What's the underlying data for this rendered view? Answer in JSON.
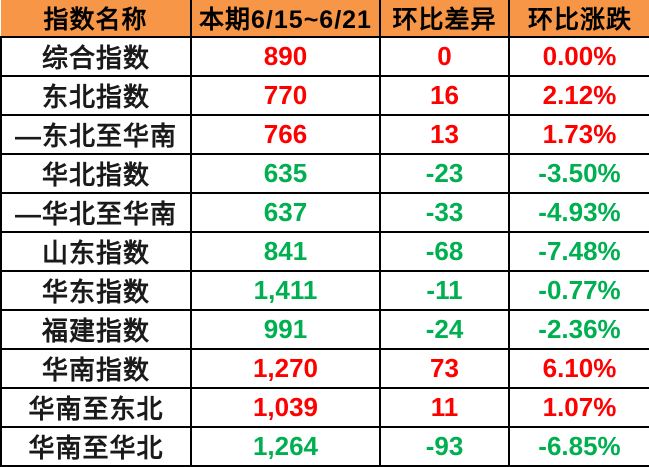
{
  "colors": {
    "header_bg": "#F79646",
    "up_text": "#FF0000",
    "down_text": "#00B050",
    "border": "#000000",
    "header_text": "#000000",
    "name_text": "#1A1A1A",
    "row_bg": "#FFFFFF"
  },
  "table": {
    "headers": {
      "name": "指数名称",
      "current": "本期6/15~6/21",
      "diff": "环比差异",
      "pct": "环比涨跌"
    },
    "rows": [
      {
        "name": "综合指数",
        "current": "890",
        "diff": "0",
        "pct": "0.00%",
        "trend": "up"
      },
      {
        "name": "东北指数",
        "current": "770",
        "diff": "16",
        "pct": "2.12%",
        "trend": "up"
      },
      {
        "name": "—东北至华南",
        "current": "766",
        "diff": "13",
        "pct": "1.73%",
        "trend": "up"
      },
      {
        "name": "华北指数",
        "current": "635",
        "diff": "-23",
        "pct": "-3.50%",
        "trend": "down"
      },
      {
        "name": "—华北至华南",
        "current": "637",
        "diff": "-33",
        "pct": "-4.93%",
        "trend": "down"
      },
      {
        "name": "山东指数",
        "current": "841",
        "diff": "-68",
        "pct": "-7.48%",
        "trend": "down"
      },
      {
        "name": "华东指数",
        "current": "1,411",
        "diff": "-11",
        "pct": "-0.77%",
        "trend": "down"
      },
      {
        "name": "福建指数",
        "current": "991",
        "diff": "-24",
        "pct": "-2.36%",
        "trend": "down"
      },
      {
        "name": "华南指数",
        "current": "1,270",
        "diff": "73",
        "pct": "6.10%",
        "trend": "up"
      },
      {
        "name": "华南至东北",
        "current": "1,039",
        "diff": "11",
        "pct": "1.07%",
        "trend": "up"
      },
      {
        "name": "华南至华北",
        "current": "1,264",
        "diff": "-93",
        "pct": "-6.85%",
        "trend": "down"
      }
    ]
  },
  "chart_data": {
    "type": "table",
    "title": "",
    "columns": [
      "指数名称",
      "本期6/15~6/21",
      "环比差异",
      "环比涨跌"
    ],
    "categories": [
      "综合指数",
      "东北指数",
      "—东北至华南",
      "华北指数",
      "—华北至华南",
      "山东指数",
      "华东指数",
      "福建指数",
      "华南指数",
      "华南至东北",
      "华南至华北"
    ],
    "series": [
      {
        "name": "本期6/15~6/21",
        "values": [
          890,
          770,
          766,
          635,
          637,
          841,
          1411,
          991,
          1270,
          1039,
          1264
        ]
      },
      {
        "name": "环比差异",
        "values": [
          0,
          16,
          13,
          -23,
          -33,
          -68,
          -11,
          -24,
          73,
          11,
          -93
        ]
      },
      {
        "name": "环比涨跌(%)",
        "values": [
          0.0,
          2.12,
          1.73,
          -3.5,
          -4.93,
          -7.48,
          -0.77,
          -2.36,
          6.1,
          1.07,
          -6.85
        ]
      }
    ],
    "notes": "positive/zero rows rendered red, negative rows rendered green"
  }
}
